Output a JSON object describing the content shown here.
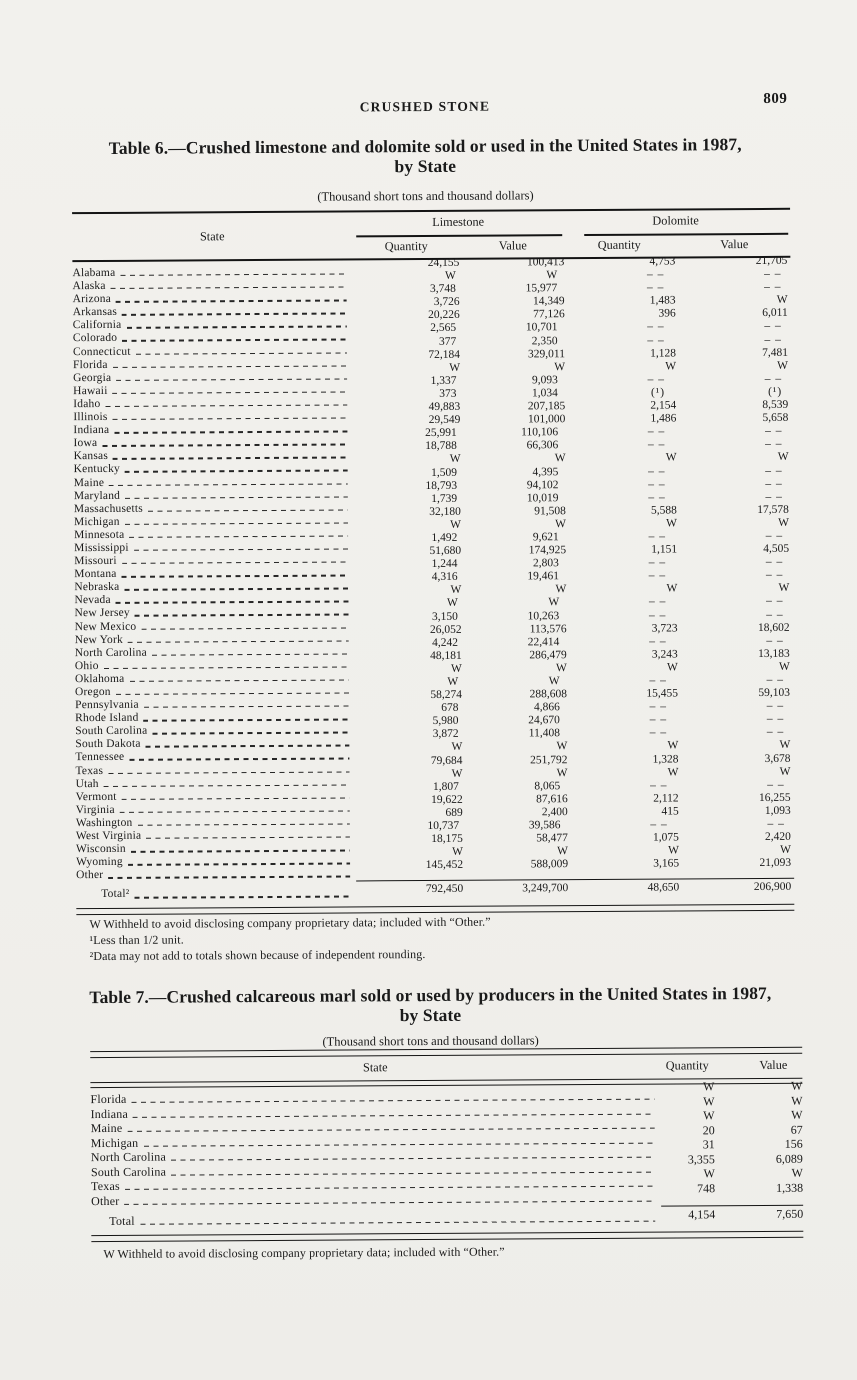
{
  "page": {
    "running_head": "CRUSHED STONE",
    "page_number": "809"
  },
  "table6": {
    "title_line1": "Table 6.—Crushed limestone and dolomite sold or used in the United States in 1987,",
    "title_line2": "by State",
    "subtitle": "(Thousand short tons and thousand dollars)",
    "headers": {
      "state": "State",
      "limestone": "Limestone",
      "dolomite": "Dolomite",
      "subs": [
        "Quantity",
        "Value",
        "Quantity",
        "Value"
      ]
    },
    "row_format": [
      "state",
      "limestone_quantity",
      "limestone_value",
      "dolomite_quantity",
      "dolomite_value"
    ],
    "rows": [
      [
        "Alabama",
        "24,155",
        "100,413",
        "4,753",
        "21,705"
      ],
      [
        "Alaska",
        "W",
        "W",
        "--",
        "--"
      ],
      [
        "Arizona",
        "3,748",
        "15,977",
        "--",
        "--"
      ],
      [
        "Arkansas",
        "3,726",
        "14,349",
        "1,483",
        "W"
      ],
      [
        "California",
        "20,226",
        "77,126",
        "396",
        "6,011"
      ],
      [
        "Colorado",
        "2,565",
        "10,701",
        "--",
        "--"
      ],
      [
        "Connecticut",
        "377",
        "2,350",
        "--",
        "--"
      ],
      [
        "Florida",
        "72,184",
        "329,011",
        "1,128",
        "7,481"
      ],
      [
        "Georgia",
        "W",
        "W",
        "W",
        "W"
      ],
      [
        "Hawaii",
        "1,337",
        "9,093",
        "--",
        "--"
      ],
      [
        "Idaho",
        "373",
        "1,034",
        "(¹)",
        "(¹)"
      ],
      [
        "Illinois",
        "49,883",
        "207,185",
        "2,154",
        "8,539"
      ],
      [
        "Indiana",
        "29,549",
        "101,000",
        "1,486",
        "5,658"
      ],
      [
        "Iowa",
        "25,991",
        "110,106",
        "--",
        "--"
      ],
      [
        "Kansas",
        "18,788",
        "66,306",
        "--",
        "--"
      ],
      [
        "Kentucky",
        "W",
        "W",
        "W",
        "W"
      ],
      [
        "Maine",
        "1,509",
        "4,395",
        "--",
        "--"
      ],
      [
        "Maryland",
        "18,793",
        "94,102",
        "--",
        "--"
      ],
      [
        "Massachusetts",
        "1,739",
        "10,019",
        "--",
        "--"
      ],
      [
        "Michigan",
        "32,180",
        "91,508",
        "5,588",
        "17,578"
      ],
      [
        "Minnesota",
        "W",
        "W",
        "W",
        "W"
      ],
      [
        "Mississippi",
        "1,492",
        "9,621",
        "--",
        "--"
      ],
      [
        "Missouri",
        "51,680",
        "174,925",
        "1,151",
        "4,505"
      ],
      [
        "Montana",
        "1,244",
        "2,803",
        "--",
        "--"
      ],
      [
        "Nebraska",
        "4,316",
        "19,461",
        "--",
        "--"
      ],
      [
        "Nevada",
        "W",
        "W",
        "W",
        "W"
      ],
      [
        "New Jersey",
        "W",
        "W",
        "--",
        "--"
      ],
      [
        "New Mexico",
        "3,150",
        "10,263",
        "--",
        "--"
      ],
      [
        "New York",
        "26,052",
        "113,576",
        "3,723",
        "18,602"
      ],
      [
        "North Carolina",
        "4,242",
        "22,414",
        "--",
        "--"
      ],
      [
        "Ohio",
        "48,181",
        "286,479",
        "3,243",
        "13,183"
      ],
      [
        "Oklahoma",
        "W",
        "W",
        "W",
        "W"
      ],
      [
        "Oregon",
        "W",
        "W",
        "--",
        "--"
      ],
      [
        "Pennsylvania",
        "58,274",
        "288,608",
        "15,455",
        "59,103"
      ],
      [
        "Rhode Island",
        "678",
        "4,866",
        "--",
        "--"
      ],
      [
        "South Carolina",
        "5,980",
        "24,670",
        "--",
        "--"
      ],
      [
        "South Dakota",
        "3,872",
        "11,408",
        "--",
        "--"
      ],
      [
        "Tennessee",
        "W",
        "W",
        "W",
        "W"
      ],
      [
        "Texas",
        "79,684",
        "251,792",
        "1,328",
        "3,678"
      ],
      [
        "Utah",
        "W",
        "W",
        "W",
        "W"
      ],
      [
        "Vermont",
        "1,807",
        "8,065",
        "--",
        "--"
      ],
      [
        "Virginia",
        "19,622",
        "87,616",
        "2,112",
        "16,255"
      ],
      [
        "Washington",
        "689",
        "2,400",
        "415",
        "1,093"
      ],
      [
        "West Virginia",
        "10,737",
        "39,586",
        "--",
        "--"
      ],
      [
        "Wisconsin",
        "18,175",
        "58,477",
        "1,075",
        "2,420"
      ],
      [
        "Wyoming",
        "W",
        "W",
        "W",
        "W"
      ],
      [
        "Other",
        "145,452",
        "588,009",
        "3,165",
        "21,093"
      ]
    ],
    "total_row": [
      "Total²",
      "792,450",
      "3,249,700",
      "48,650",
      "206,900"
    ],
    "footnotes": [
      "W Withheld to avoid disclosing company proprietary data; included with “Other.”",
      "¹Less than 1/2 unit.",
      "²Data may not add to totals shown because of independent rounding."
    ]
  },
  "table7": {
    "title_line1": "Table 7.—Crushed calcareous marl sold or used by producers in the United States in 1987,",
    "title_line2": "by State",
    "subtitle": "(Thousand short tons and thousand dollars)",
    "headers": {
      "state": "State",
      "quantity": "Quantity",
      "value": "Value"
    },
    "row_format": [
      "state",
      "quantity",
      "value"
    ],
    "rows": [
      [
        "Florida",
        "W",
        "W"
      ],
      [
        "Indiana",
        "W",
        "W"
      ],
      [
        "Maine",
        "W",
        "W"
      ],
      [
        "Michigan",
        "20",
        "67"
      ],
      [
        "North Carolina",
        "31",
        "156"
      ],
      [
        "South Carolina",
        "3,355",
        "6,089"
      ],
      [
        "Texas",
        "W",
        "W"
      ],
      [
        "Other",
        "748",
        "1,338"
      ]
    ],
    "total_row": [
      "Total",
      "4,154",
      "7,650"
    ],
    "footnotes": [
      "W Withheld to avoid disclosing company proprietary data; included with “Other.”"
    ]
  }
}
